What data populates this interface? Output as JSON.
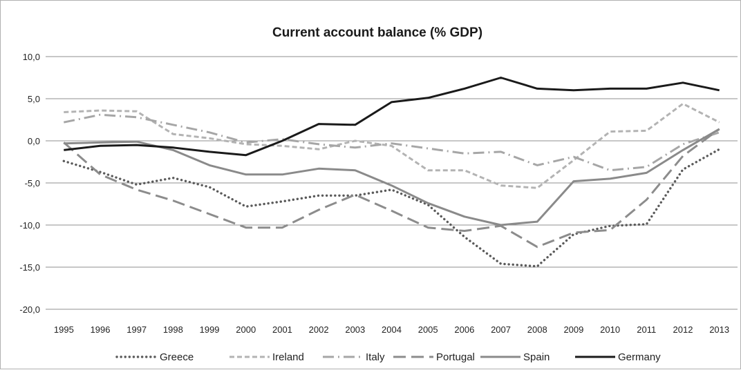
{
  "chart_data": {
    "type": "line",
    "title": "Current account balance (% GDP)",
    "xlabel": "",
    "ylabel": "",
    "x": [
      "1995",
      "1996",
      "1997",
      "1998",
      "1999",
      "2000",
      "2001",
      "2002",
      "2003",
      "2004",
      "2005",
      "2006",
      "2007",
      "2008",
      "2009",
      "2010",
      "2011",
      "2012",
      "2013"
    ],
    "y_ticks": [
      "10,0",
      "5,0",
      "0,0",
      "-5,0",
      "-10,0",
      "-15,0",
      "-20,0"
    ],
    "ylim": [
      -20,
      10
    ],
    "grid": true,
    "legend_position": "bottom",
    "series": [
      {
        "name": "Greece",
        "style": "dotted",
        "color": "#5a5a5a",
        "values": [
          -2.4,
          -3.7,
          -5.2,
          -4.4,
          -5.5,
          -7.8,
          -7.2,
          -6.5,
          -6.5,
          -5.8,
          -7.6,
          -11.4,
          -14.6,
          -14.9,
          -11.1,
          -10.1,
          -9.9,
          -3.4,
          -1.0
        ]
      },
      {
        "name": "Ireland",
        "style": "short-dash",
        "color": "#b3b3b3",
        "values": [
          3.4,
          3.6,
          3.5,
          0.8,
          0.3,
          -0.4,
          -0.6,
          -1.0,
          0.0,
          -0.6,
          -3.5,
          -3.5,
          -5.3,
          -5.6,
          -2.3,
          1.1,
          1.2,
          4.4,
          2.2
        ]
      },
      {
        "name": "Italy",
        "style": "dash-dot",
        "color": "#a6a6a6",
        "values": [
          2.2,
          3.1,
          2.8,
          1.9,
          1.0,
          -0.2,
          0.2,
          -0.4,
          -0.8,
          -0.3,
          -0.9,
          -1.5,
          -1.3,
          -2.9,
          -1.9,
          -3.5,
          -3.1,
          -0.4,
          1.0
        ]
      },
      {
        "name": "Portugal",
        "style": "long-dash",
        "color": "#8c8c8c",
        "values": [
          -0.2,
          -4.0,
          -5.8,
          -7.1,
          -8.7,
          -10.3,
          -10.3,
          -8.2,
          -6.4,
          -8.3,
          -10.3,
          -10.7,
          -10.1,
          -12.6,
          -10.9,
          -10.6,
          -7.0,
          -1.8,
          1.4
        ]
      },
      {
        "name": "Spain",
        "style": "solid",
        "color": "#8a8a8a",
        "values": [
          -0.3,
          -0.2,
          -0.1,
          -1.1,
          -2.9,
          -4.0,
          -4.0,
          -3.3,
          -3.5,
          -5.3,
          -7.4,
          -9.0,
          -10.0,
          -9.6,
          -4.8,
          -4.5,
          -3.8,
          -1.1,
          1.4
        ]
      },
      {
        "name": "Germany",
        "style": "solid",
        "color": "#1a1a1a",
        "values": [
          -1.1,
          -0.6,
          -0.5,
          -0.8,
          -1.3,
          -1.7,
          0.0,
          2.0,
          1.9,
          4.6,
          5.1,
          6.2,
          7.5,
          6.2,
          6.0,
          6.2,
          6.2,
          6.9,
          6.0
        ]
      }
    ]
  }
}
